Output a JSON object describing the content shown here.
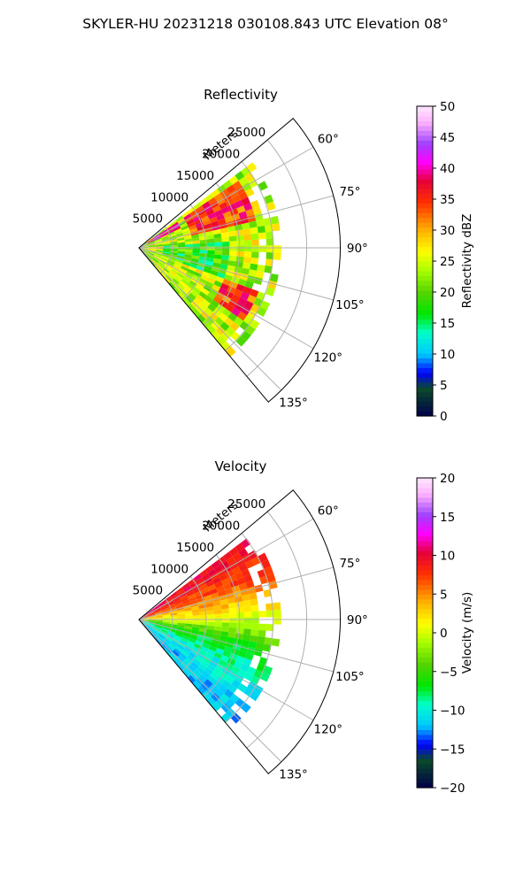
{
  "figure": {
    "suptitle": "SKYLER-HU  20231218  030108.843 UTC Elevation 08°"
  },
  "chart_data": [
    {
      "type": "heatmap",
      "subtype": "polar-sector-radar-ppi",
      "title": "Reflectivity",
      "radial_axis_label": "Meters",
      "radial_ticks": [
        5000,
        10000,
        15000,
        20000,
        25000
      ],
      "radial_tick_labels": [
        "5000",
        "10000",
        "15000",
        "20000",
        "25000"
      ],
      "rlim": [
        0,
        30000
      ],
      "angular_ticks": [
        60,
        75,
        90,
        105,
        120,
        135
      ],
      "angular_tick_labels": [
        "60°",
        "75°",
        "90°",
        "105°",
        "120°",
        "135°"
      ],
      "azimuth_range": [
        50,
        140
      ],
      "grid": true,
      "colorbar": {
        "label": "Reflectivity dBZ",
        "range": [
          0,
          50
        ],
        "ticks": [
          0,
          5,
          10,
          15,
          20,
          25,
          30,
          35,
          40,
          45,
          50
        ],
        "tick_labels": [
          "0",
          "5",
          "10",
          "15",
          "20",
          "25",
          "30",
          "35",
          "40",
          "45",
          "50"
        ]
      },
      "colors": {
        "stops": [
          "#00004a",
          "#0a4a2a",
          "#0000ff",
          "#00c8ff",
          "#00ffc8",
          "#00e600",
          "#55d400",
          "#a8ff00",
          "#ffff00",
          "#ffb000",
          "#ff3000",
          "#e6003a",
          "#ff00ff",
          "#a040ff",
          "#ffb4ff",
          "#ffe6ff"
        ],
        "stop_positions": [
          0.0,
          0.09,
          0.14,
          0.2,
          0.27,
          0.33,
          0.4,
          0.47,
          0.53,
          0.6,
          0.69,
          0.76,
          0.82,
          0.88,
          0.95,
          1.0
        ]
      },
      "value_field": {
        "range_min": 300,
        "range_max": 21000,
        "typical_value": 24,
        "banding": [
          {
            "azimuth_from": 55,
            "azimuth_to": 78,
            "range_from": 8000,
            "range_to": 18000,
            "value": 35
          },
          {
            "azimuth_from": 55,
            "azimuth_to": 64,
            "range_from": 1000,
            "range_to": 7000,
            "value": 38
          },
          {
            "azimuth_from": 110,
            "azimuth_to": 125,
            "range_from": 14000,
            "range_to": 19000,
            "value": 35
          },
          {
            "azimuth_from": 85,
            "azimuth_to": 110,
            "range_from": 4000,
            "range_to": 14000,
            "value": 18
          }
        ]
      }
    },
    {
      "type": "heatmap",
      "subtype": "polar-sector-radar-ppi",
      "title": "Velocity",
      "radial_axis_label": "Meters",
      "radial_ticks": [
        5000,
        10000,
        15000,
        20000,
        25000
      ],
      "radial_tick_labels": [
        "5000",
        "10000",
        "15000",
        "20000",
        "25000"
      ],
      "rlim": [
        0,
        30000
      ],
      "angular_ticks": [
        60,
        75,
        90,
        105,
        120,
        135
      ],
      "angular_tick_labels": [
        "60°",
        "75°",
        "90°",
        "105°",
        "120°",
        "135°"
      ],
      "azimuth_range": [
        50,
        140
      ],
      "grid": true,
      "colorbar": {
        "label": "Velocity (m/s)",
        "range": [
          -20,
          20
        ],
        "ticks": [
          -20,
          -15,
          -10,
          -5,
          0,
          5,
          10,
          15,
          20
        ],
        "tick_labels": [
          "−20",
          "−15",
          "−10",
          "−5",
          "0",
          "5",
          "10",
          "15",
          "20"
        ]
      },
      "colors": {
        "stops": [
          "#00004a",
          "#0a4a2a",
          "#0000ff",
          "#00c8ff",
          "#00ffc8",
          "#00e600",
          "#55d400",
          "#a8ff00",
          "#ffff00",
          "#ffb000",
          "#ff3000",
          "#e6003a",
          "#ff00ff",
          "#a040ff",
          "#ffb4ff",
          "#ffe6ff"
        ],
        "stop_positions": [
          0.0,
          0.09,
          0.14,
          0.2,
          0.27,
          0.33,
          0.4,
          0.47,
          0.53,
          0.6,
          0.69,
          0.76,
          0.82,
          0.88,
          0.95,
          1.0
        ]
      },
      "value_field": {
        "range_min": 300,
        "range_max": 21000,
        "azimuth_profile": [
          {
            "azimuth": 55,
            "value": 10
          },
          {
            "azimuth": 70,
            "value": 7
          },
          {
            "azimuth": 85,
            "value": 2
          },
          {
            "azimuth": 95,
            "value": -2
          },
          {
            "azimuth": 105,
            "value": -7
          },
          {
            "azimuth": 120,
            "value": -10
          },
          {
            "azimuth": 135,
            "value": -12
          }
        ]
      }
    }
  ]
}
